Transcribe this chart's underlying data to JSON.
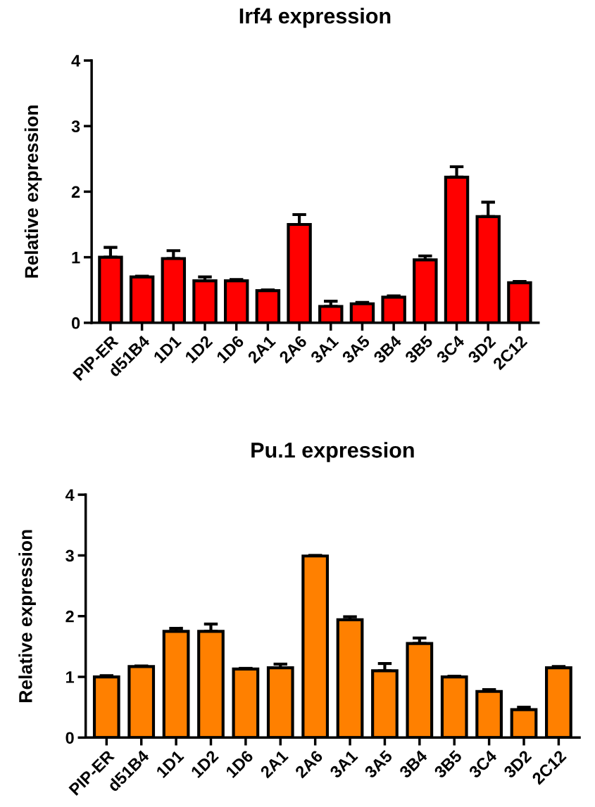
{
  "chart_data": [
    {
      "type": "bar",
      "title": "Irf4 expression",
      "ylabel": "Relative expression",
      "categories": [
        "PIP-ER",
        "d51B4",
        "1D1",
        "1D2",
        "1D6",
        "2A1",
        "2A6",
        "3A1",
        "3A5",
        "3B4",
        "3B5",
        "3C4",
        "3D2",
        "2C12"
      ],
      "values": [
        1.0,
        0.7,
        0.98,
        0.64,
        0.64,
        0.49,
        1.5,
        0.25,
        0.29,
        0.39,
        0.96,
        2.22,
        1.62,
        0.61
      ],
      "errors": [
        [
          1.0,
          1.15
        ],
        [
          0.7,
          0.71
        ],
        [
          0.98,
          1.1
        ],
        [
          0.64,
          0.7
        ],
        [
          0.64,
          0.66
        ],
        [
          0.49,
          0.5
        ],
        [
          1.5,
          1.65
        ],
        [
          0.25,
          0.33
        ],
        [
          0.29,
          0.31
        ],
        [
          0.39,
          0.41
        ],
        [
          0.96,
          1.02
        ],
        [
          2.22,
          2.38
        ],
        [
          1.62,
          1.84
        ],
        [
          0.61,
          0.63
        ]
      ],
      "color": "#ff0000",
      "ylim": [
        0,
        4
      ],
      "yticks": [
        0,
        1,
        2,
        3,
        4
      ],
      "grid": false,
      "legend": false
    },
    {
      "type": "bar",
      "title": "Pu.1 expression",
      "ylabel": "Relative expression",
      "categories": [
        "PIP-ER",
        "d51B4",
        "1D1",
        "1D2",
        "1D6",
        "2A1",
        "2A6",
        "3A1",
        "3A5",
        "3B4",
        "3B5",
        "3C4",
        "3D2",
        "2C12"
      ],
      "values": [
        1.0,
        1.17,
        1.75,
        1.75,
        1.13,
        1.15,
        2.99,
        1.94,
        1.1,
        1.55,
        1.0,
        0.76,
        0.46,
        1.15
      ],
      "errors": [
        [
          1.0,
          1.02
        ],
        [
          1.17,
          1.18
        ],
        [
          1.75,
          1.8
        ],
        [
          1.75,
          1.87
        ],
        [
          1.13,
          1.14
        ],
        [
          1.15,
          1.21
        ],
        [
          2.99,
          3.0
        ],
        [
          1.94,
          1.99
        ],
        [
          1.1,
          1.22
        ],
        [
          1.55,
          1.64
        ],
        [
          1.0,
          1.01
        ],
        [
          0.76,
          0.79
        ],
        [
          0.46,
          0.5
        ],
        [
          1.15,
          1.17
        ]
      ],
      "color": "#ff8000",
      "ylim": [
        0,
        4
      ],
      "yticks": [
        0,
        1,
        2,
        3,
        4
      ],
      "grid": false,
      "legend": false
    }
  ]
}
